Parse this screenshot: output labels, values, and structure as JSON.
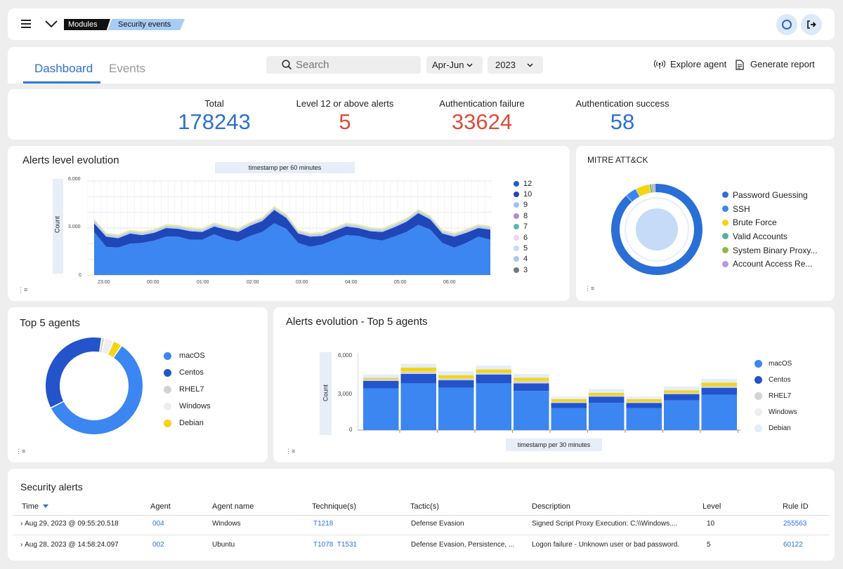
{
  "breadcrumb": {
    "modules": "Modules",
    "current": "Security events"
  },
  "tabs": {
    "dashboard": "Dashboard",
    "events": "Events"
  },
  "search": {
    "placeholder": "Search"
  },
  "filters": {
    "quarter": "Apr-Jun",
    "year": "2023"
  },
  "actions": {
    "explore": "Explore agent",
    "report": "Generate report"
  },
  "stats": [
    {
      "label": "Total",
      "value": "178243",
      "color": "#2f6fd0"
    },
    {
      "label": "Level 12 or above alerts",
      "value": "5",
      "color": "#dd4b39"
    },
    {
      "label": "Authentication failure",
      "value": "33624",
      "color": "#dd4b39"
    },
    {
      "label": "Authentication success",
      "value": "58",
      "color": "#2f6fd0"
    }
  ],
  "alerts_chart": {
    "title": "Alerts level evolution",
    "x_caption": "timestamp per 60 minutes",
    "y_label": "Count",
    "y_ticks": [
      "6.000",
      "3.000",
      "0"
    ],
    "x_ticks": [
      "23:00",
      "00:00",
      "01:00",
      "02:00",
      "03:00",
      "04:00",
      "05:00",
      "06:00"
    ],
    "legend": [
      {
        "label": "12",
        "color": "#1f5fc8"
      },
      {
        "label": "10",
        "color": "#2746b0"
      },
      {
        "label": "9",
        "color": "#9fc3f5"
      },
      {
        "label": "8",
        "color": "#a98fd6"
      },
      {
        "label": "7",
        "color": "#5bb8b0"
      },
      {
        "label": "6",
        "color": "#ead6f2"
      },
      {
        "label": "5",
        "color": "#c9dcf7"
      },
      {
        "label": "4",
        "color": "#a8c7f0"
      },
      {
        "label": "3",
        "color": "#777777"
      }
    ]
  },
  "mitre": {
    "title": "MITRE ATT&CK",
    "legend": [
      {
        "label": "Password Guessing",
        "color": "#2a6fd6"
      },
      {
        "label": "SSH",
        "color": "#3a86f0"
      },
      {
        "label": "Brute Force",
        "color": "#f5d414"
      },
      {
        "label": "Valid Accounts",
        "color": "#5aaea8"
      },
      {
        "label": "System Binary Proxy...",
        "color": "#8db845"
      },
      {
        "label": "Account Access Re...",
        "color": "#b69ae0"
      }
    ]
  },
  "top_agents": {
    "title": "Top 5 agents",
    "legend": [
      {
        "label": "macOS",
        "color": "#3b86f0"
      },
      {
        "label": "Centos",
        "color": "#2454cc"
      },
      {
        "label": "RHEL7",
        "color": "#d3d3d3"
      },
      {
        "label": "Windows",
        "color": "#eeeeee"
      },
      {
        "label": "Debian",
        "color": "#f5d414"
      }
    ]
  },
  "agents_evolution": {
    "title": "Alerts evolution - Top 5 agents",
    "x_caption": "timestamp per 30 minutes",
    "y_label": "Count",
    "y_ticks": [
      "6,000",
      "3,000",
      "0"
    ],
    "legend": [
      {
        "label": "macOS",
        "color": "#3b86f0"
      },
      {
        "label": "Centos",
        "color": "#2454cc"
      },
      {
        "label": "RHEL7",
        "color": "#d3d3d3"
      },
      {
        "label": "Windows",
        "color": "#eeeeee"
      },
      {
        "label": "Debian",
        "color": "#e3edfb"
      }
    ]
  },
  "chart_data": [
    {
      "type": "area",
      "title": "Alerts level evolution",
      "xlabel": "timestamp per 60 minutes",
      "ylabel": "Count",
      "ylim": [
        0,
        6000
      ],
      "x": [
        "22:30",
        "22:45",
        "23:00",
        "23:15",
        "23:30",
        "23:45",
        "00:00",
        "00:15",
        "00:30",
        "00:45",
        "01:00",
        "01:15",
        "01:30",
        "01:45",
        "02:00",
        "02:15",
        "02:30",
        "02:45",
        "03:00",
        "03:15",
        "03:30",
        "03:45",
        "04:00",
        "04:15",
        "04:30",
        "04:45",
        "05:00",
        "05:15",
        "05:30",
        "05:45",
        "06:00",
        "06:15",
        "06:30",
        "06:45"
      ],
      "series": [
        {
          "name": "5",
          "values": [
            2750,
            1800,
            1750,
            2000,
            2050,
            2200,
            2450,
            2450,
            2250,
            2250,
            2600,
            2300,
            2150,
            2500,
            2750,
            3300,
            2950,
            2050,
            1800,
            1950,
            2250,
            2550,
            2500,
            2300,
            2200,
            2450,
            2750,
            3200,
            2900,
            2050,
            1750,
            2050,
            2450,
            2250
          ]
        },
        {
          "name": "10",
          "values": [
            550,
            650,
            600,
            650,
            500,
            500,
            550,
            500,
            550,
            500,
            500,
            600,
            600,
            650,
            700,
            850,
            700,
            600,
            650,
            550,
            550,
            550,
            500,
            500,
            550,
            600,
            650,
            750,
            650,
            600,
            700,
            650,
            550,
            650
          ]
        },
        {
          "name": "12",
          "values": [
            200,
            150,
            150,
            150,
            150,
            150,
            150,
            150,
            150,
            150,
            150,
            150,
            150,
            150,
            150,
            150,
            150,
            150,
            150,
            150,
            150,
            150,
            150,
            150,
            150,
            150,
            150,
            150,
            150,
            150,
            150,
            150,
            150,
            150
          ]
        },
        {
          "name": "4",
          "values": [
            100,
            100,
            100,
            100,
            100,
            100,
            100,
            100,
            100,
            100,
            100,
            100,
            100,
            100,
            100,
            100,
            100,
            100,
            100,
            100,
            100,
            100,
            100,
            100,
            100,
            100,
            100,
            100,
            100,
            100,
            100,
            100,
            100,
            100
          ]
        }
      ]
    },
    {
      "type": "pie",
      "title": "MITRE ATT&CK",
      "categories": [
        "Password Guessing",
        "SSH",
        "Brute Force",
        "Valid Accounts",
        "System Binary Proxy...",
        "Account Access Re..."
      ],
      "values": [
        89,
        4,
        5,
        0.7,
        0.6,
        0.7
      ]
    },
    {
      "type": "pie",
      "title": "Top 5 agents",
      "categories": [
        "macOS",
        "Centos",
        "RHEL7",
        "Windows",
        "Debian"
      ],
      "values": [
        58,
        35,
        1,
        3,
        3
      ]
    },
    {
      "type": "bar",
      "title": "Alerts evolution - Top 5 agents",
      "xlabel": "timestamp per 30 minutes",
      "ylabel": "Count",
      "ylim": [
        0,
        6000
      ],
      "stacked": true,
      "categories": [
        "1",
        "2",
        "3",
        "4",
        "5",
        "6",
        "7",
        "8",
        "9",
        "10"
      ],
      "series": [
        {
          "name": "macOS",
          "values": [
            3300,
            3700,
            3350,
            3700,
            3100,
            1750,
            2150,
            1750,
            2350,
            2800
          ]
        },
        {
          "name": "Centos",
          "values": [
            600,
            750,
            600,
            700,
            600,
            400,
            500,
            400,
            500,
            550
          ]
        },
        {
          "name": "RHEL7",
          "values": [
            150,
            200,
            150,
            150,
            200,
            100,
            100,
            100,
            100,
            150
          ]
        },
        {
          "name": "Debian",
          "values": [
            100,
            300,
            250,
            250,
            250,
            200,
            200,
            200,
            200,
            250
          ]
        },
        {
          "name": "Windows",
          "values": [
            250,
            300,
            300,
            300,
            300,
            200,
            300,
            200,
            300,
            300
          ]
        }
      ]
    }
  ],
  "security_alerts": {
    "title": "Security alerts",
    "headers": [
      "Time",
      "Agent",
      "Agent name",
      "Technique(s)",
      "Tactic(s)",
      "Description",
      "Level",
      "Rule ID"
    ],
    "rows": [
      {
        "time": "Aug 29, 2023 @ 09:55:20.518",
        "agent": "004",
        "agent_name": "Windows",
        "techniques": "T1218",
        "tactics": "Defense Evasion",
        "description": "Signed Script Proxy Execution: C:\\\\Windows....",
        "level": "10",
        "rule_id": "255563"
      },
      {
        "time": "Aug 28, 2023 @ 14:58:24.097",
        "agent": "002",
        "agent_name": "Ubuntu",
        "techniques": "T1078  T1531",
        "tactics": "Defense Evasion, Persistence, ...",
        "description": "Logon failure - Unknown user or bad password.",
        "level": "5",
        "rule_id": "60122"
      }
    ]
  }
}
